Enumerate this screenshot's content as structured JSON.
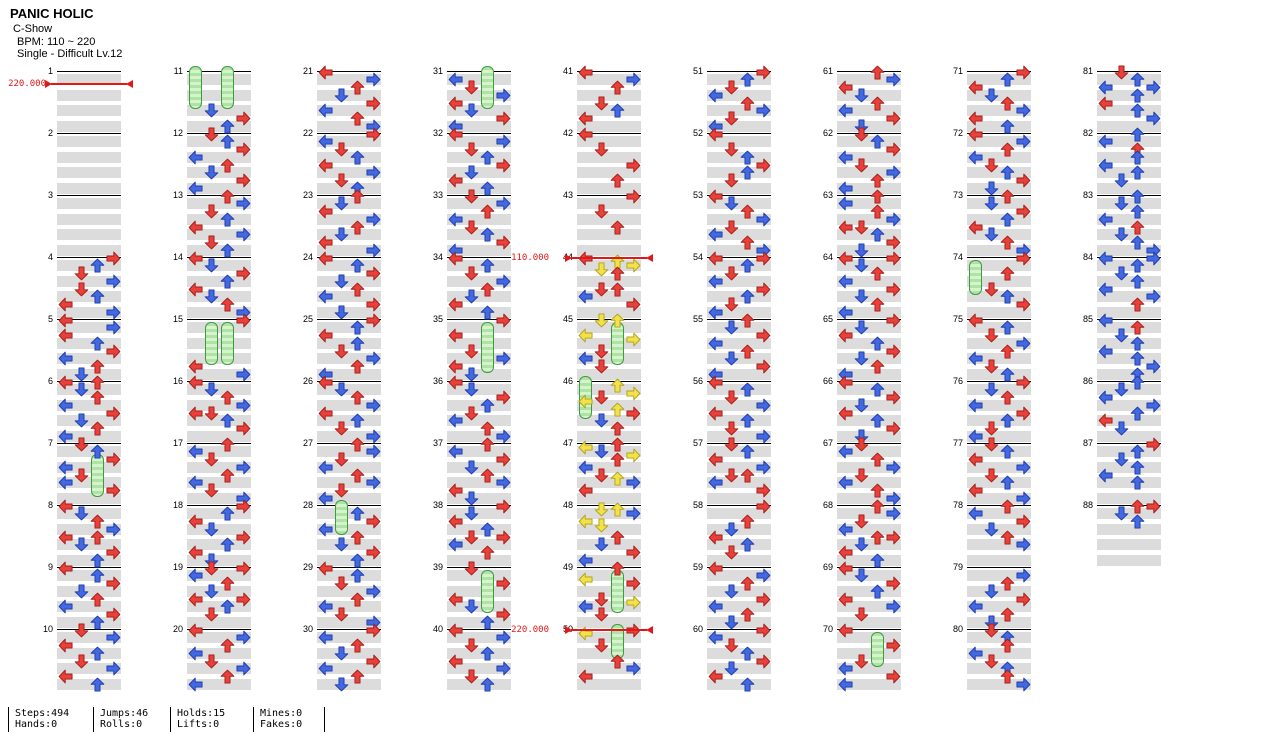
{
  "header": {
    "title": "PANIC HOLIC",
    "artist": "C-Show",
    "bpm": "BPM: 110 ~ 220",
    "meta": "Single - Difficult  Lv.12"
  },
  "stats": {
    "groups": [
      {
        "line1": "Steps:494",
        "line2": "Hands:0"
      },
      {
        "line1": "Jumps:46",
        "line2": "Rolls:0"
      },
      {
        "line1": "Holds:15",
        "line2": "Lifts:0"
      },
      {
        "line1": "Mines:0",
        "line2": "Fakes:0"
      }
    ]
  },
  "chart": {
    "colors": {
      "red": "#e8403a",
      "red_edge": "#a51d17",
      "blue": "#4468e0",
      "blue_edge": "#1c3cae",
      "yellow": "#f2e24a",
      "yellow_edge": "#b3a119",
      "hold": "#aee3a4",
      "hold_edge": "#3f9b3f",
      "marker": "#e01818",
      "band": "#dcdcdc",
      "line": "#000000"
    },
    "bpm_markers": [
      {
        "measure": 1,
        "row": 3,
        "label": "220.000"
      },
      {
        "measure": 44,
        "row": 0,
        "label": "110.000"
      },
      {
        "measure": 50,
        "row": 0,
        "label": "220.000"
      }
    ],
    "measures": [
      {
        "n": 1,
        "s": ""
      },
      {
        "n": 2,
        "s": ""
      },
      {
        "n": 3,
        "s": ""
      },
      {
        "n": 4,
        "s": "0Rr 2Ub 4Dr 6Rb 8Dr aUb cLr eRb"
      },
      {
        "n": 5,
        "s": "0Lr 2Rb 4Lr 6Ub 8Rr aLb cUr eDb"
      },
      {
        "n": 6,
        "s": "0Lr 0Ur 2Db 4Ur 6Lb 8Rr aDb cUr eLb"
      },
      {
        "n": 7,
        "s": "0Dr 2Ub 4Rr 4Ug8 6Lb 8Dr aLb cRr"
      },
      {
        "n": 8,
        "s": "0Lr 2Db 4Ur 6Rb 8Lr 8Ur aDb cRr eUb"
      },
      {
        "n": 9,
        "s": "0Lr 2Ub 4Rr 6Db 8Ur aLb cRr eUb"
      },
      {
        "n": 10,
        "s": "0Dr 2Rb 4Lr 6Ub 8Dr aRb cLr eUb"
      },
      {
        "n": 11,
        "s": "0Lg8 0Ug8 aDb cRr eUb"
      },
      {
        "n": 12,
        "s": "0Dr 2Ub 4Rr 6Lb 8Ur aDb cRr eLb"
      },
      {
        "n": 13,
        "s": "0Ur 2Rb 4Dr 6Ub 8Lr aRb cDr eUb"
      },
      {
        "n": 14,
        "s": "0Lr 2Db 4Rr 6Ub 8Lr aDb cUr eRb"
      },
      {
        "n": 15,
        "s": "0Rr 2Dg8 2Ug8 cLr eRb"
      },
      {
        "n": 16,
        "s": "0Lr 2Db 4Ur 6Rb 8Dr 8Lr aUb cRr"
      },
      {
        "n": 17,
        "s": "0Ur 2Lb 4Dr 6Rb 8Ur aLb cDr eRb"
      },
      {
        "n": 18,
        "s": "0Rr 2Ub 4Lr 6Db 8Rr aUb cLr eDb"
      },
      {
        "n": 19,
        "s": "0Dr 0Rr 2Lb 4Ur 6Db 8Lr 8Rr aUb cDr"
      },
      {
        "n": 20,
        "s": "0Lr 2Rb 4Ur 6Lb 8Dr aRb cUr eLb"
      },
      {
        "n": 21,
        "s": "0Lr 2Rb 4Ur 6Db 8Rr aLb cUr eRb"
      },
      {
        "n": 22,
        "s": "0Rr 2Lb 4Dr 6Ub 8Lr aRb cDr eUb"
      },
      {
        "n": 23,
        "s": "0Ur 2Db 4Lr 6Rb 8Ur aDb cLr eRb"
      },
      {
        "n": 24,
        "s": "0Lr 2Ub 4Rr 6Db 8Ur aLb cRr eDb"
      },
      {
        "n": 25,
        "s": "0Rr 2Ub 4Lr 6Ub 8Dr aRb cUr eLb"
      },
      {
        "n": 26,
        "s": "0Lr 2Db 4Ur 6Rb 8Lr aUb cDr eRb"
      },
      {
        "n": 27,
        "s": "0Ur 2Rb 4Dr 6Lb 8Ur aRb cDr eLb"
      },
      {
        "n": 28,
        "s": "0Dg6 2Ub 4Rr 6Lb 8Ur aDb cRr eUb"
      },
      {
        "n": 29,
        "s": "0Lr 2Ub 4Dr 6Rb 8Ur aLb cDr eRb"
      },
      {
        "n": 30,
        "s": "0Rr 2Lb 4Ur 6Db 8Rr aLb cUr eDb"
      },
      {
        "n": 31,
        "s": "0Ug8 2Lb 4Dr 6Rb 8Lr aDb cRr eLb"
      },
      {
        "n": 32,
        "s": "0Lr 2Rb 4Dr 6Ub 8Rr aDb cLr eUb"
      },
      {
        "n": 33,
        "s": "0Dr 2Rb 4Ur 6Lb 8Dr aUb cRr eLb"
      },
      {
        "n": 34,
        "s": "0Lr 2Ub 4Dr 6Rb 8Ur aDb cLr eUb"
      },
      {
        "n": 35,
        "s": "0Rr 2Uga 4Lr 8Dr aRb cLr eDb"
      },
      {
        "n": 36,
        "s": "0Lr 2Db 4Rr 6Ub 8Dr aLb cUr eRb"
      },
      {
        "n": 37,
        "s": "0Ur 2Lb 4Rr 6Db 8Ur aRb cLr eDb"
      },
      {
        "n": 38,
        "s": "0Rr 2Db 4Lr 6Ub 8Rr 8Dr aLb cUr"
      },
      {
        "n": 39,
        "s": "0Dr 2Ug8 4Rr 8Lr aDb cRr eUb"
      },
      {
        "n": 40,
        "s": "0Lr 2Rb 4Dr 6Ub 8Lr aRb cDr eUb"
      },
      {
        "n": 41,
        "s": "0Lr 2Rb 4Ur 8Dr aUb cLr"
      },
      {
        "n": 42,
        "s": "0Lr 4Dr 8Rr cUr"
      },
      {
        "n": 43,
        "s": "0Rr 4Dr 8Ur"
      },
      {
        "n": 44,
        "s": "0Lr 1Uy 2Ry 3Dy 4Ur 8Dr 8Ur aLb cRr"
      },
      {
        "n": 45,
        "s": "0Uy 0Dy 2Ug8 4Ly 5Ry 8Dr aLb cDr"
      },
      {
        "n": 46,
        "s": "0Lg8 1Uy 3Ry 4Dr 5Ly 7Uy 8Rr aDb cUr"
      },
      {
        "n": 47,
        "s": "0Ur 1Ly 2Db 3Ry 4Ur 6Lb 8Dr 9Uy aRb cLr"
      },
      {
        "n": 48,
        "s": "1Dy 1Uy 2Rb 4Ly 5Dy 8Ur aDb cRr eLb"
      },
      {
        "n": 49,
        "s": "0Ur 2Ug8 3Ly 4Rr 8Dr 9Ry aLb cDr"
      },
      {
        "n": 50,
        "s": "0Rr 0Ug6 1Ly 4Dr 8Ur aRb cLr"
      },
      {
        "n": 51,
        "s": "0Rr 2Ub 4Dr 6Lb 8Ur aRb cDr eLb"
      },
      {
        "n": 52,
        "s": "0Lr 4Dr 6Ub 8Rr aUb cDr"
      },
      {
        "n": 53,
        "s": "0Lr 2Db 4Ur 6Rb 8Dr aLb cUr eRb"
      },
      {
        "n": 54,
        "s": "0Lr 0Rr 2Ub 4Dr 6Lb 8Rr aUb cDr eLb"
      },
      {
        "n": 55,
        "s": "0Ur 2Db 4Rr 6Lb 8Ur aDb cRr eLb"
      },
      {
        "n": 56,
        "s": "0Lr 2Ub 4Dr 6Rb 8Lr aUb cDr eRb"
      },
      {
        "n": 57,
        "s": "0Dr 2Ub 4Lr 6Rb 8Dr 8Ur aLb cRr"
      },
      {
        "n": 58,
        "s": "0Rr 4Ur 6Db 8Lr aUb cDr"
      },
      {
        "n": 59,
        "s": "0Lr 2Rb 4Ur 6Db 8Rr aLb cUr eDb"
      },
      {
        "n": 60,
        "s": "0Rr 2Lb 4Dr 6Ub 8Rr aDb cLr eUb"
      },
      {
        "n": 61,
        "s": "0Ur 2Rb 4Lr 6Db 8Ur aLb cRr eDb"
      },
      {
        "n": 62,
        "s": "0Dr 2Ub 4Rr 6Lb 8Dr aRb cUr eLb"
      },
      {
        "n": 63,
        "s": "0Ur 2Lb 4Ur 6Rb 8Dr 8Lr aUb cRr eDb"
      },
      {
        "n": 64,
        "s": "0Lr 0Rr 2Db 4Ur 6Lb 8Rr aDb cUr eLb"
      },
      {
        "n": 65,
        "s": "0Rr 2Db 4Lr 6Ub 8Rr aDb cUr eLb"
      },
      {
        "n": 66,
        "s": "0Lr 2Ub 4Rr 6Db 8Lr aUb cRr eDb"
      },
      {
        "n": 67,
        "s": "0Dr 2Lb 4Ur 6Rb 8Dr aLb cUr eRb"
      },
      {
        "n": 68,
        "s": "0Ur 2Rb 4Dr 6Lb 8Ur 8Rr aDb cLr eUb"
      },
      {
        "n": 69,
        "s": "0Lr 2Db 4Rr 6Ub 8Lr aRb cDr"
      },
      {
        "n": 70,
        "s": "0Lr 2Ug6 4Rr 8Dr aLb cRr eLb"
      },
      {
        "n": 71,
        "s": "0Rr 2Ub 4Lr 6Db 8Ur aRb cLr eUb"
      },
      {
        "n": 72,
        "s": "0Lr 2Rb 4Ur 6Lb 8Dr aUb cRr eDb"
      },
      {
        "n": 73,
        "s": "0Ur 2Db 4Rr 6Ub 8Lr aDb cUr eRb"
      },
      {
        "n": 74,
        "s": "0Rr 2Lg6 4Ur 8Dr aUb cRr"
      },
      {
        "n": 75,
        "s": "0Lr 2Ub 4Dr 6Rb 8Ur aLb cDr eUb"
      },
      {
        "n": 76,
        "s": "0Rr 2Db 4Ur 6Lb 8Rr aUb cDr eLb"
      },
      {
        "n": 77,
        "s": "0Dr 2Ub 4Lr 6Rb 8Dr aUb cLr eRb"
      },
      {
        "n": 78,
        "s": "0Ur 2Lb 4Rr 6Db 8Ur aRb"
      },
      {
        "n": 79,
        "s": "2Rb 4Ur 6Db 8Rr aLb cUr eDb"
      },
      {
        "n": 80,
        "s": "0Dr 2Ub 4Ur 6Lb 8Dr aUb cUr eRb"
      },
      {
        "n": 81,
        "s": "0Dr 2Ub 4Lb 4Rb 6Ub 8Lr aUb cRb"
      },
      {
        "n": 82,
        "s": "0Ub 2Lb 4Ur 6Ub 8Lb aUb cDb"
      },
      {
        "n": 83,
        "s": "0Ub 2Db 4Ub 6Lb 8Ur aDb cUb eRb"
      },
      {
        "n": 84,
        "s": "0Lb 0Rb 2Ub 4Db 6Ub 8Lb aRb cUr"
      },
      {
        "n": 85,
        "s": "0Lb 2Ur 4Db 6Ub 8Lb aUb cRb eUb"
      },
      {
        "n": 86,
        "s": "0Ub 2Db 4Lb 6Rb 8Ub aLr cDb"
      },
      {
        "n": 87,
        "s": "0Rr 2Ub 4Db 6Ub 8Lb aUb"
      },
      {
        "n": 88,
        "s": "0Ur 0Rr 2Db 4Ub"
      }
    ]
  }
}
